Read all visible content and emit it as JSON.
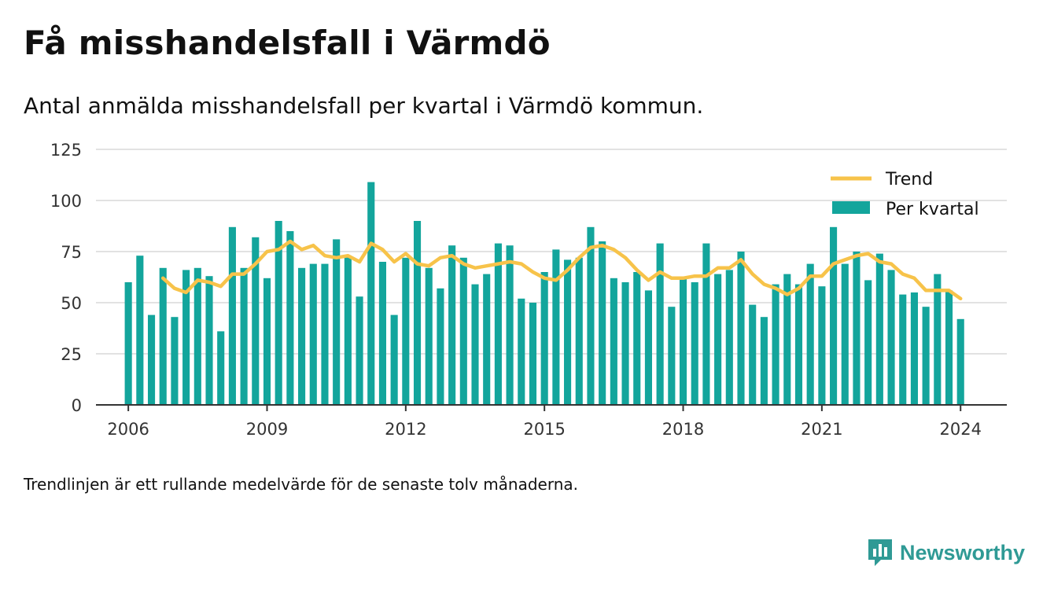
{
  "header": {
    "title": "Få misshandelsfall i Värmdö",
    "subtitle": "Antal anmälda misshandelsfall per kvartal i Värmdö kommun."
  },
  "footnote": "Trendlinjen är ett rullande medelvärde för de senaste tolv månaderna.",
  "brand": {
    "name": "Newsworthy",
    "icon": "newsworthy-logo-icon",
    "color": "#2f9a95"
  },
  "colors": {
    "bar": "#13a59c",
    "trend": "#f7c34a",
    "grid": "#d9d9d9",
    "axis": "#333333"
  },
  "chart_data": {
    "type": "bar",
    "title": "Få misshandelsfall i Värmdö",
    "subtitle": "Antal anmälda misshandelsfall per kvartal i Värmdö kommun.",
    "xlabel": "",
    "ylabel": "",
    "ylim": [
      0,
      125
    ],
    "xlim": [
      2005.3,
      2025.0
    ],
    "yticks": [
      "0",
      "25",
      "50",
      "75",
      "100",
      "125"
    ],
    "xticks": [
      "2006",
      "2009",
      "2012",
      "2015",
      "2018",
      "2021",
      "2024"
    ],
    "grid": true,
    "legend_position": "top-right",
    "legend": [
      "Trend",
      "Per kvartal"
    ],
    "series": [
      {
        "name": "Per kvartal",
        "type": "bar",
        "start": "2006 Q1",
        "values": [
          60,
          73,
          44,
          67,
          43,
          66,
          67,
          63,
          36,
          87,
          67,
          82,
          62,
          90,
          85,
          67,
          69,
          69,
          81,
          73,
          53,
          109,
          70,
          44,
          72,
          90,
          67,
          57,
          78,
          72,
          59,
          64,
          79,
          78,
          52,
          50,
          65,
          76,
          71,
          72,
          87,
          80,
          62,
          60,
          65,
          56,
          79,
          48,
          62,
          60,
          79,
          64,
          66,
          75,
          49,
          43,
          59,
          64,
          59,
          69,
          58,
          87,
          69,
          75,
          61,
          74,
          66,
          54,
          55,
          48,
          64,
          56,
          42
        ]
      },
      {
        "name": "Trend",
        "type": "line",
        "start": "2006 Q4",
        "values": [
          62,
          57,
          55,
          61,
          60,
          58,
          64,
          64,
          69,
          75,
          76,
          80,
          76,
          78,
          73,
          72,
          73,
          70,
          79,
          76,
          70,
          74,
          69,
          68,
          72,
          73,
          69,
          67,
          68,
          69,
          70,
          69,
          65,
          62,
          61,
          66,
          72,
          77,
          78,
          76,
          72,
          66,
          61,
          65,
          62,
          62,
          63,
          63,
          67,
          67,
          71,
          64,
          59,
          57,
          54,
          57,
          63,
          63,
          69,
          71,
          73,
          74,
          70,
          69,
          64,
          62,
          56,
          56,
          56,
          52
        ]
      }
    ]
  }
}
